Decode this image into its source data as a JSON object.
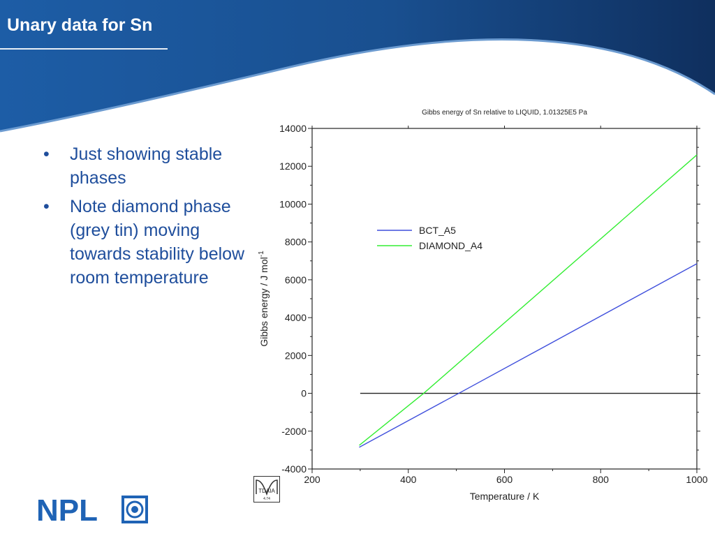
{
  "slide": {
    "title": "Unary data for Sn",
    "bullets": [
      "Just showing stable phases",
      "Note diamond phase (grey tin) moving towards stability below room temperature"
    ],
    "bullet_glyph": "•"
  },
  "logos": {
    "npl_text": "NPL",
    "tdaia_text": "TDAIA",
    "tdaia_sub": "4.74"
  },
  "colors": {
    "title_bg": "#1a4f8f",
    "bullet_text": "#1f4e9c",
    "npl_blue": "#1f63b5",
    "bct": "#3f4fdc",
    "diamond": "#33ee33"
  },
  "chart_data": {
    "type": "line",
    "title": "Gibbs energy of Sn relative to LIQUID, 1.01325E5 Pa",
    "xlabel": "Temperature / K",
    "ylabel": "Gibbs energy / J mol",
    "ylabel_sup": "-1",
    "xlim": [
      200,
      1000
    ],
    "ylim": [
      -4000,
      14000
    ],
    "xticks": [
      200,
      400,
      600,
      800,
      1000
    ],
    "yticks": [
      -4000,
      -2000,
      0,
      2000,
      4000,
      6000,
      8000,
      10000,
      12000,
      14000
    ],
    "legend_position": "upper-left-inside",
    "grid": false,
    "series": [
      {
        "name": "BCT_A5",
        "color": "#3f4fdc",
        "x": [
          298,
          505,
          1000
        ],
        "y": [
          -2850,
          0,
          6850
        ]
      },
      {
        "name": "DIAMOND_A4",
        "color": "#33ee33",
        "x": [
          298,
          432,
          1000
        ],
        "y": [
          -2750,
          0,
          12600
        ]
      }
    ],
    "reference_line": {
      "y": 0,
      "x": [
        300,
        1000
      ],
      "color": "#222222"
    }
  }
}
